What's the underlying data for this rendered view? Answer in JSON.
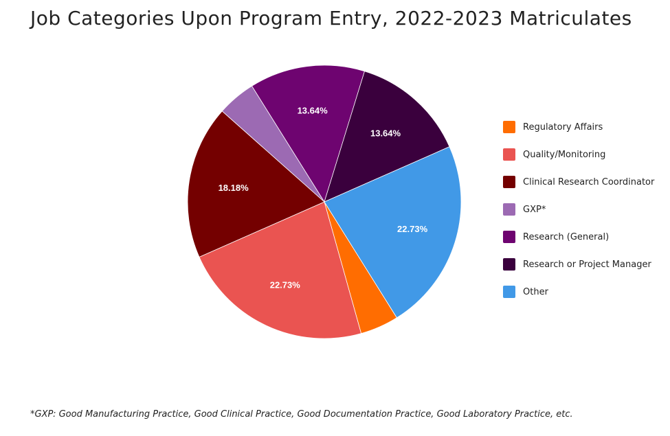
{
  "chart_data": {
    "type": "pie",
    "title": "Job Categories Upon Program Entry, 2022-2023 Matriculates",
    "categories": [
      "Regulatory Affairs",
      "Quality/Monitoring",
      "Clinical Research Coordinator",
      "GXP*",
      "Research (General)",
      "Research or Project Manager",
      "Other"
    ],
    "values": [
      4.55,
      22.73,
      18.18,
      4.55,
      13.64,
      13.64,
      22.73
    ],
    "data_labels": [
      "",
      "22.73%",
      "18.18%",
      "",
      "13.64%",
      "13.64%",
      "22.73%"
    ],
    "colors": [
      "#ff6d01",
      "#ea5451",
      "#740000",
      "#9c6ab3",
      "#6e0470",
      "#3a003d",
      "#4199e7"
    ],
    "legend": "right",
    "footnote": "*GXP: Good Manufacturing Practice, Good Clinical Practice, Good Documentation Practice, Good Laboratory Practice, etc."
  }
}
